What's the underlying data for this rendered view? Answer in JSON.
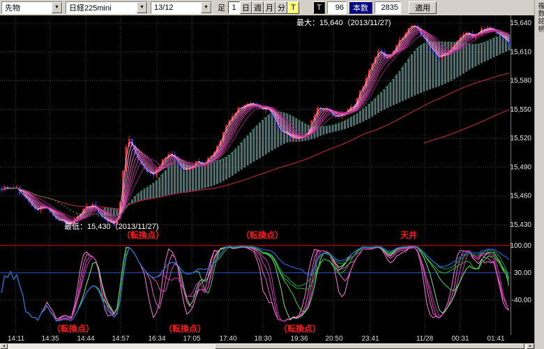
{
  "toolbar": {
    "instrument_type": "先物",
    "instrument": "日経225mini",
    "contract_month": "13/12",
    "ashi_label": "足",
    "period_buttons": [
      "1",
      "日",
      "週",
      "月",
      "分"
    ],
    "tick_toggle": "T",
    "t_button": "T",
    "bars_per_candle": "96",
    "honsu_label": "本数",
    "bar_count": "2835",
    "apply_label": "適用"
  },
  "side_tab_label": "複数銘柄",
  "colors": {
    "up_candle": "#e8231e",
    "down_candle": "#2b3bd4",
    "cloud": "#a8e0e2",
    "green_ma": "#0d9a3c",
    "dark_red_ma": "#93263a",
    "ribbon": [
      "#ffb3e2",
      "#ff9ad8",
      "#f77fcb",
      "#ea66bd",
      "#d951ae",
      "#c43f9e",
      "#ad2f8d",
      "#96217c"
    ],
    "osc_magenta": [
      "#ff7bdf",
      "#f55fd2",
      "#e246c2",
      "#cc30b0"
    ],
    "osc_green": [
      "#7fe87f",
      "#4ed44e",
      "#27b827"
    ],
    "osc_dark_green": "#0f8f3c",
    "osc_blue": "#2b62d9",
    "ref_red": "#dd0000",
    "ref_blue": "#2a50c8",
    "annotation_red": "#ff1a1a",
    "grid": "#3c3c3c",
    "axis_text": "#e8e8e8"
  },
  "chart_data": {
    "type": "candlestick",
    "instrument": "日経225mini 13/12",
    "price_axis": {
      "tick_labels": [
        "15,640",
        "15,610",
        "15,580",
        "15,550",
        "15,520",
        "15,490",
        "15,460",
        "15,430"
      ],
      "tick_values": [
        15640,
        15610,
        15580,
        15550,
        15520,
        15490,
        15460,
        15430
      ],
      "max": 15640,
      "min": 15430
    },
    "time_axis": {
      "labels": [
        "14:11",
        "14:35",
        "14:44",
        "14:57",
        "16:34",
        "17:05",
        "17:40",
        "18:30",
        "19:36",
        "20:50",
        "23:41",
        "11/28",
        "00:31",
        "01:41"
      ],
      "xf": [
        0.031,
        0.098,
        0.168,
        0.236,
        0.307,
        0.376,
        0.447,
        0.515,
        0.586,
        0.654,
        0.725,
        0.832,
        0.902,
        0.971
      ]
    },
    "annotations": {
      "max_label": "最大：15,640（2013/11/27)",
      "min_label": "最低：15,430（2013/11/27)",
      "upper_marks": [
        {
          "text": "（転換点）",
          "xf": 0.28
        },
        {
          "text": "（転換点）",
          "xf": 0.513
        },
        {
          "text": "天井",
          "xf": 0.8
        }
      ],
      "lower_marks": [
        {
          "text": "（転換点）",
          "xf": 0.143
        },
        {
          "text": "（転換点）",
          "xf": 0.362
        },
        {
          "text": "（転換点）",
          "xf": 0.587
        }
      ]
    },
    "high": 15640,
    "low": 15430,
    "num_candles": 168,
    "price_keypoints": [
      [
        0.0,
        15468
      ],
      [
        0.014,
        15466
      ],
      [
        0.027,
        15470
      ],
      [
        0.041,
        15461
      ],
      [
        0.055,
        15452
      ],
      [
        0.068,
        15445
      ],
      [
        0.082,
        15450
      ],
      [
        0.096,
        15443
      ],
      [
        0.11,
        15436
      ],
      [
        0.123,
        15432
      ],
      [
        0.137,
        15430
      ],
      [
        0.15,
        15440
      ],
      [
        0.164,
        15447
      ],
      [
        0.178,
        15451
      ],
      [
        0.191,
        15443
      ],
      [
        0.205,
        15436
      ],
      [
        0.219,
        15431
      ],
      [
        0.226,
        15433
      ],
      [
        0.232,
        15446
      ],
      [
        0.239,
        15482
      ],
      [
        0.246,
        15516
      ],
      [
        0.253,
        15521
      ],
      [
        0.26,
        15508
      ],
      [
        0.273,
        15496
      ],
      [
        0.287,
        15487
      ],
      [
        0.301,
        15483
      ],
      [
        0.314,
        15494
      ],
      [
        0.328,
        15505
      ],
      [
        0.342,
        15498
      ],
      [
        0.355,
        15489
      ],
      [
        0.369,
        15486
      ],
      [
        0.383,
        15496
      ],
      [
        0.396,
        15493
      ],
      [
        0.41,
        15499
      ],
      [
        0.424,
        15510
      ],
      [
        0.437,
        15525
      ],
      [
        0.451,
        15543
      ],
      [
        0.464,
        15550
      ],
      [
        0.478,
        15553
      ],
      [
        0.492,
        15556
      ],
      [
        0.505,
        15554
      ],
      [
        0.519,
        15550
      ],
      [
        0.533,
        15546
      ],
      [
        0.546,
        15530
      ],
      [
        0.574,
        15519
      ],
      [
        0.601,
        15524
      ],
      [
        0.622,
        15551
      ],
      [
        0.642,
        15548
      ],
      [
        0.656,
        15543
      ],
      [
        0.677,
        15548
      ],
      [
        0.694,
        15553
      ],
      [
        0.71,
        15572
      ],
      [
        0.731,
        15600
      ],
      [
        0.745,
        15613
      ],
      [
        0.758,
        15602
      ],
      [
        0.772,
        15610
      ],
      [
        0.786,
        15622
      ],
      [
        0.8,
        15635
      ],
      [
        0.813,
        15640
      ],
      [
        0.826,
        15628
      ],
      [
        0.847,
        15610
      ],
      [
        0.861,
        15604
      ],
      [
        0.881,
        15608
      ],
      [
        0.895,
        15622
      ],
      [
        0.915,
        15630
      ],
      [
        0.929,
        15626
      ],
      [
        0.943,
        15632
      ],
      [
        0.957,
        15636
      ],
      [
        0.971,
        15632
      ],
      [
        0.985,
        15628
      ],
      [
        1.0,
        15618
      ]
    ],
    "overlays": {
      "ribbon_periods": [
        2,
        3,
        4,
        5,
        6,
        7,
        8,
        10
      ],
      "green_ma_period": 18,
      "cloud_periods": [
        18,
        55
      ],
      "dark_red_periods": [
        80,
        140
      ]
    },
    "oscillator": {
      "type": "rci",
      "tick_labels": [
        "100.00",
        "30.00",
        "-40.00"
      ],
      "tick_values": [
        100,
        30,
        -40
      ],
      "ref_lines": [
        {
          "value": 100,
          "color_key": "ref_red"
        },
        {
          "value": 30,
          "color_key": "ref_blue"
        }
      ],
      "magenta_periods": [
        8,
        10,
        12,
        14
      ],
      "green_periods": [
        20,
        26,
        32
      ],
      "dark_green_period": 44,
      "blue_period": 60
    }
  }
}
